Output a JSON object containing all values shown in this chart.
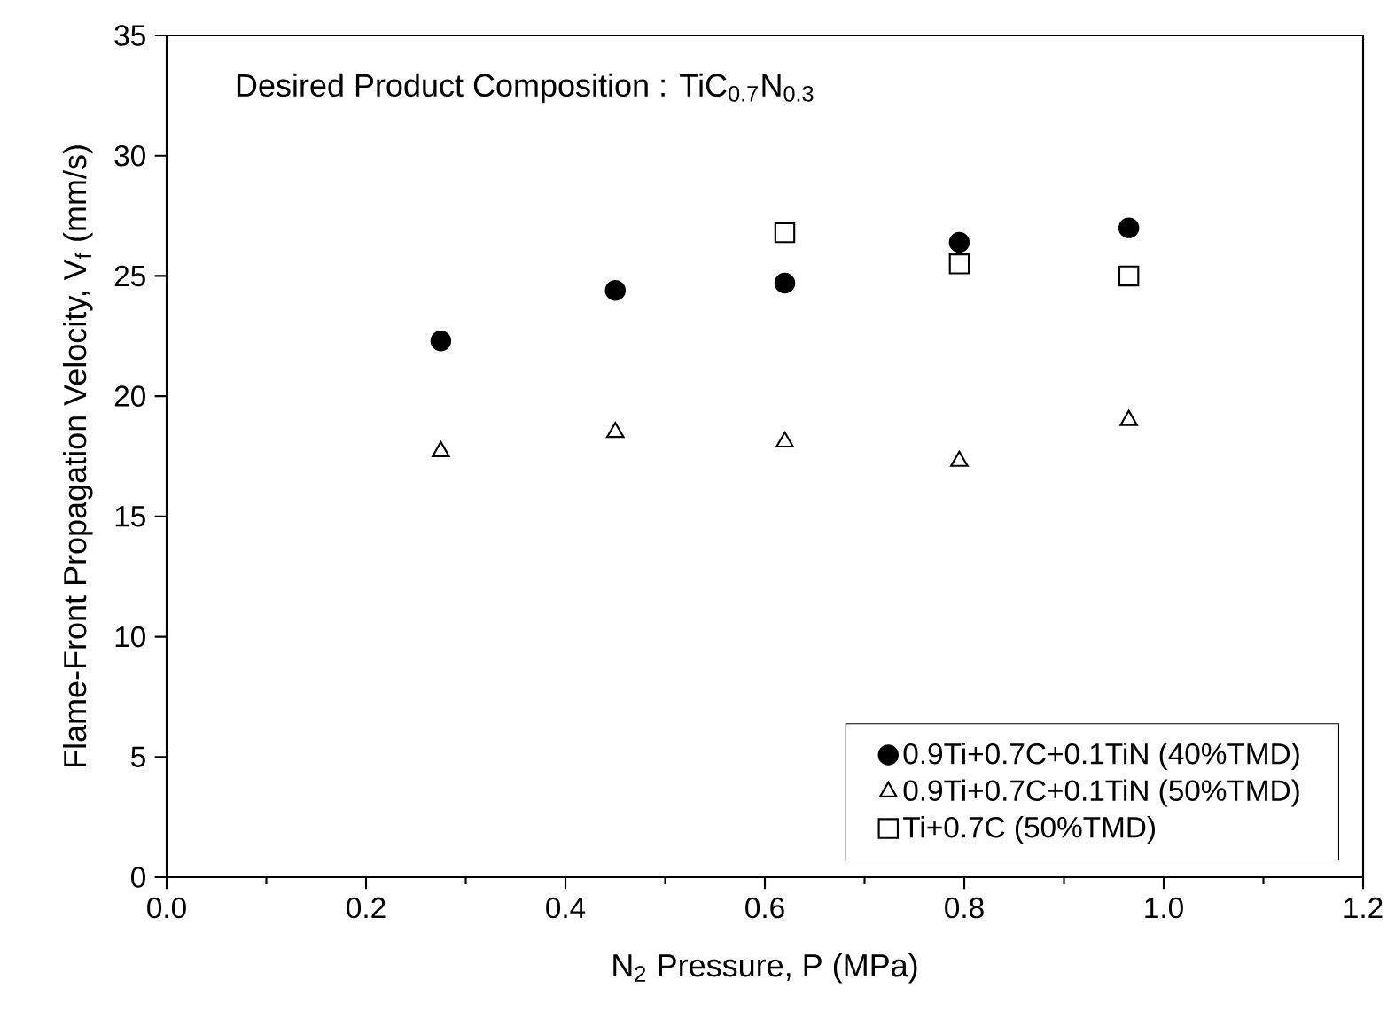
{
  "chart_data": {
    "type": "scatter",
    "xlabel": "N$_{2}$ Pressure, P (MPa)",
    "ylabel": "Flame-Front Propagation Velocity, V$_{f}$ (mm/s)",
    "annotations": [
      "Desired Product Composition : TiC$_{0.7}$N$_{0.3}$"
    ],
    "xlim": [
      0,
      1.2
    ],
    "xticks": [
      {
        "value": 0,
        "label": "0.0"
      },
      0.2,
      0.4,
      0.6,
      0.8,
      {
        "value": 1,
        "label": "1.0"
      },
      1.2
    ],
    "ylim": [
      0,
      35
    ],
    "yticks": [
      0,
      5,
      10,
      15,
      20,
      25,
      30,
      35
    ],
    "legend": "bottom right",
    "grid": false,
    "series": [
      {
        "name": "0.9Ti+0.7C+0.1TiN (40%TMD)",
        "color": "#000000",
        "marker": "circle",
        "x": [
          0.275,
          0.45,
          0.62,
          0.795,
          0.965
        ],
        "values": [
          22.3,
          24.4,
          24.7,
          26.4,
          27.0
        ]
      },
      {
        "name": "0.9Ti+0.7C+0.1TiN (50%TMD)",
        "color": "#000000",
        "marker": "triangle",
        "x": [
          0.275,
          0.45,
          0.62,
          0.795,
          0.965
        ],
        "values": [
          17.7,
          18.5,
          18.1,
          17.3,
          19.0
        ]
      },
      {
        "name": "Ti+0.7C (50%TMD)",
        "color": "#000000",
        "marker": "square",
        "x": [
          0.62,
          0.795,
          0.965
        ],
        "values": [
          26.8,
          25.5,
          25.0
        ]
      }
    ]
  }
}
